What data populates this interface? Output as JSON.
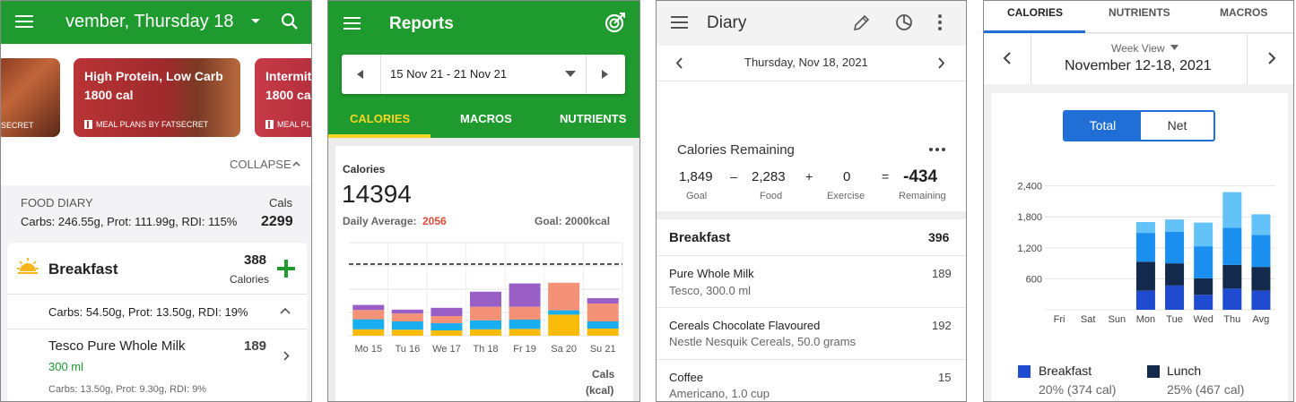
{
  "panel1": {
    "header_title": "vember, Thursday 18",
    "cards": [
      {
        "title": "",
        "footer": "SECRET"
      },
      {
        "title": "High Protein, Low Carb",
        "cal": "1800 cal",
        "footer": "MEAL PLANS BY FATSECRET"
      },
      {
        "title": "Intermit",
        "cal": "1800 ca",
        "footer": "MEAL PL"
      }
    ],
    "collapse_label": "COLLAPSE",
    "food_diary_label": "FOOD DIARY",
    "cals_label": "Cals",
    "summary": "Carbs: 246.55g, Prot: 111.99g, RDI: 115%",
    "total_cals": "2299",
    "breakfast_label": "Breakfast",
    "breakfast_cals": "388",
    "calories_label": "Calories",
    "breakfast_macros": "Carbs: 54.50g, Prot: 13.50g, RDI: 19%",
    "item_name": "Tesco Pure Whole Milk",
    "item_cals": "189",
    "item_amount": "300 ml",
    "item_macros": "Carbs: 13.50g, Prot: 9.30g, RDI: 9%"
  },
  "panel2": {
    "title": "Reports",
    "date_range": "15 Nov 21 - 21 Nov 21",
    "tabs": [
      "CALORIES",
      "MACROS",
      "NUTRIENTS"
    ],
    "calories_label": "Calories",
    "total": "14394",
    "daily_avg_label": "Daily Average:",
    "daily_avg_value": "2056",
    "goal_label": "Goal: 2000kcal",
    "unit_label_1": "Cals",
    "unit_label_2": "(kcal)",
    "colors": {
      "purple": "#9a5fc6",
      "salmon": "#f39277",
      "blue": "#18aef0",
      "yellow": "#f9bc0b"
    }
  },
  "panel3": {
    "title": "Diary",
    "date": "Thursday, Nov 18, 2021",
    "remaining_title": "Calories Remaining",
    "goal": "1,849",
    "goal_label": "Goal",
    "minus": "–",
    "food": "2,283",
    "food_label": "Food",
    "plus": "+",
    "exercise": "0",
    "exercise_label": "Exercise",
    "equals": "=",
    "remaining": "-434",
    "remaining_label": "Remaining",
    "section": "Breakfast",
    "section_cals": "396",
    "items": [
      {
        "name": "Pure Whole Milk",
        "detail": "Tesco, 300.0 ml",
        "cals": "189"
      },
      {
        "name": "Cereals Chocolate Flavoured",
        "detail": "Nestle Nesquik Cereals, 50.0 grams",
        "cals": "192"
      },
      {
        "name": "Coffee",
        "detail": "Americano, 1.0 cup",
        "cals": "15"
      }
    ]
  },
  "panel4": {
    "tabs": [
      "CALORIES",
      "NUTRIENTS",
      "MACROS"
    ],
    "week_view": "Week View",
    "week_range": "November 12-18, 2021",
    "toggle": [
      "Total",
      "Net"
    ],
    "legend": [
      {
        "name": "Breakfast",
        "value": "20% (374 cal)",
        "color": "#1f4bd1"
      },
      {
        "name": "Lunch",
        "value": "25% (467 cal)",
        "color": "#142a4d"
      }
    ]
  },
  "chart_data": [
    {
      "type": "bar",
      "stacked": true,
      "categories": [
        "Mo 15",
        "Tu 16",
        "We 17",
        "Th 18",
        "Fr 19",
        "Sa 20",
        "Su 21"
      ],
      "series": [
        {
          "color": "#f9bc0b",
          "values": [
            180,
            170,
            150,
            180,
            190,
            590,
            200
          ]
        },
        {
          "color": "#18aef0",
          "values": [
            280,
            230,
            200,
            250,
            260,
            120,
            200
          ]
        },
        {
          "color": "#f39277",
          "values": [
            260,
            220,
            200,
            380,
            360,
            770,
            500
          ]
        },
        {
          "color": "#9a5fc6",
          "values": [
            140,
            110,
            230,
            420,
            650,
            0,
            150
          ]
        }
      ],
      "goal_line": 2000,
      "ylim": [
        0,
        2600
      ],
      "grid": true
    },
    {
      "type": "bar",
      "stacked": true,
      "categories": [
        "Fri",
        "Sat",
        "Sun",
        "Mon",
        "Tue",
        "Wed",
        "Thu",
        "Avg"
      ],
      "yticks": [
        600,
        1200,
        1800,
        2400
      ],
      "ylim": [
        0,
        2550
      ],
      "series": [
        {
          "name": "Breakfast",
          "color": "#1f4bd1",
          "values": [
            0,
            0,
            0,
            370,
            470,
            290,
            410,
            370
          ]
        },
        {
          "name": "Lunch",
          "color": "#142a4d",
          "values": [
            0,
            0,
            0,
            560,
            430,
            320,
            460,
            460
          ]
        },
        {
          "color": "#1b8ff0",
          "values": [
            0,
            0,
            0,
            560,
            610,
            620,
            720,
            620
          ]
        },
        {
          "color": "#63c2f7",
          "values": [
            0,
            0,
            0,
            210,
            240,
            460,
            690,
            400
          ]
        }
      ],
      "grid": true
    }
  ]
}
